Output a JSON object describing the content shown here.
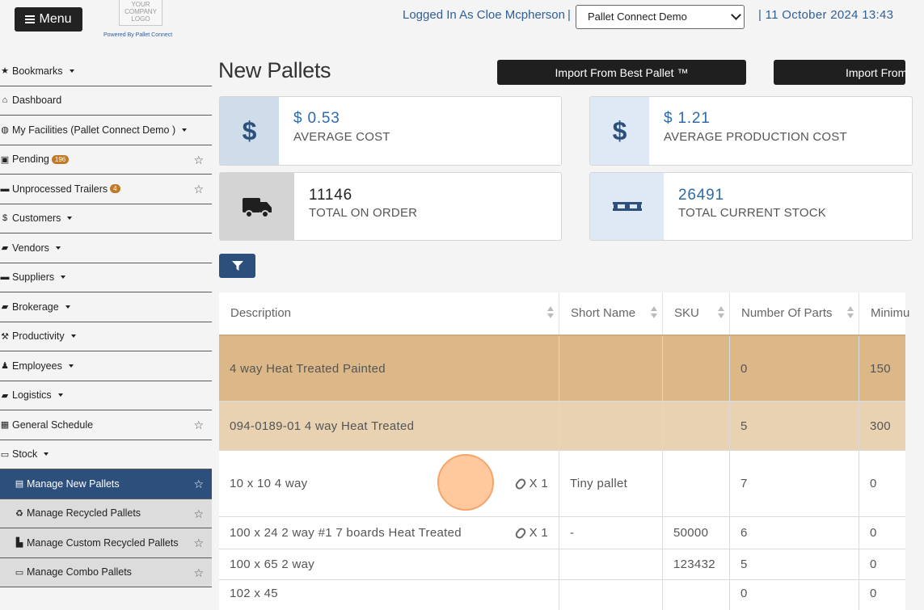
{
  "header": {
    "menu_label": "Menu",
    "logo_text": "YOUR COMPANY LOGO",
    "powered_by": "Powered By Pallet Connect",
    "logged_in": "Logged In As Cloe Mcpherson",
    "separator": "|",
    "facility": "Pallet Connect Demo",
    "datetime": "| 11 October 2024 13:43"
  },
  "sidebar": {
    "items": [
      {
        "label": "Bookmarks",
        "icon": "star-icon",
        "caret": true
      },
      {
        "label": "Dashboard",
        "icon": "home-icon"
      },
      {
        "label": "My Facilities (Pallet Connect Demo )",
        "icon": "globe-icon",
        "caret": true
      },
      {
        "label": "Pending",
        "icon": "briefcase-icon",
        "badge": "196",
        "star": true
      },
      {
        "label": "Unprocessed Trailers",
        "icon": "trailer-icon",
        "badge": "4",
        "star": true
      },
      {
        "label": "Customers",
        "icon": "dollar-icon",
        "caret": true
      },
      {
        "label": "Vendors",
        "icon": "truck-icon",
        "caret": true
      },
      {
        "label": "Suppliers",
        "icon": "trailer-icon",
        "caret": true
      },
      {
        "label": "Brokerage",
        "icon": "truck-icon",
        "caret": true
      },
      {
        "label": "Productivity",
        "icon": "hammer-icon",
        "caret": true
      },
      {
        "label": "Employees",
        "icon": "person-icon",
        "caret": true
      },
      {
        "label": "Logistics",
        "icon": "truck-icon",
        "caret": true
      },
      {
        "label": "General Schedule",
        "icon": "calendar-icon",
        "star": true
      },
      {
        "label": "Stock",
        "icon": "pallet-icon",
        "caret": true
      }
    ],
    "sub_items": [
      {
        "label": "Manage New Pallets",
        "icon": "pallets-icon",
        "active": true
      },
      {
        "label": "Manage Recycled Pallets",
        "icon": "recycle-icon"
      },
      {
        "label": "Manage Custom Recycled Pallets",
        "icon": "custom-pallet-icon"
      },
      {
        "label": "Manage Combo Pallets",
        "icon": "pallet-icon"
      }
    ]
  },
  "main": {
    "title": "New Pallets",
    "import_buttons": [
      "Import From Best Pallet ™",
      "Import From"
    ],
    "cards": [
      {
        "value": "$ 0.53",
        "label": "AVERAGE COST",
        "icon": "dollar-icon"
      },
      {
        "value": "$ 1.21",
        "label": "AVERAGE PRODUCTION COST",
        "icon": "dollar-icon"
      },
      {
        "value": "11146",
        "label": "TOTAL ON ORDER",
        "icon": "truck-icon"
      },
      {
        "value": "26491",
        "label": "TOTAL CURRENT STOCK",
        "icon": "pallet-icon"
      }
    ]
  },
  "table": {
    "headers": [
      "Description",
      "Short Name",
      "SKU",
      "Number Of Parts",
      "Minimu"
    ],
    "rows": [
      {
        "description": "4 way Heat Treated Painted",
        "attachment": "",
        "short_name": "",
        "sku": "",
        "parts": "0",
        "minimum": "150"
      },
      {
        "description": "094-0189-01 4 way Heat Treated",
        "attachment": "",
        "short_name": "",
        "sku": "",
        "parts": "5",
        "minimum": "300"
      },
      {
        "description": "10 x 10 4 way",
        "attachment": "X 1",
        "short_name": "Tiny pallet",
        "sku": "",
        "parts": "7",
        "minimum": "0"
      },
      {
        "description": "100 x 24 2 way #1 7 boards Heat Treated",
        "attachment": "X 1",
        "short_name": "-",
        "sku": "50000",
        "parts": "6",
        "minimum": "0"
      },
      {
        "description": "100 x 65 2 way",
        "attachment": "",
        "short_name": "",
        "sku": "123432",
        "parts": "5",
        "minimum": "0"
      },
      {
        "description": "102 x 45",
        "attachment": "",
        "short_name": "",
        "sku": "",
        "parts": "0",
        "minimum": "0"
      }
    ]
  },
  "colors": {
    "highlight_dark": "#dcb788",
    "highlight_light": "#e8d2b1",
    "accent": "#2c4f7c",
    "value_blue": "#2f6aa8"
  }
}
